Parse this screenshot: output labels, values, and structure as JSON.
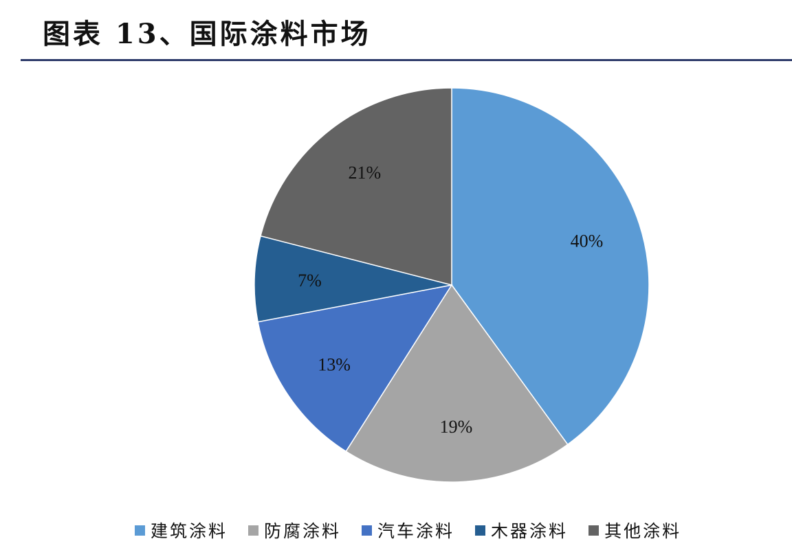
{
  "header": {
    "title": "图表 13、国际涂料市场"
  },
  "chart_data": {
    "type": "pie",
    "title": "",
    "slices": [
      {
        "name": "建筑涂料",
        "value": 40,
        "label": "40%",
        "color": "#5b9bd5"
      },
      {
        "name": "防腐涂料",
        "value": 19,
        "label": "19%",
        "color": "#a5a5a5"
      },
      {
        "name": "汽车涂料",
        "value": 13,
        "label": "13%",
        "color": "#4472c4"
      },
      {
        "name": "木器涂料",
        "value": 7,
        "label": "7%",
        "color": "#255e91"
      },
      {
        "name": "其他涂料",
        "value": 21,
        "label": "21%",
        "color": "#636363"
      }
    ],
    "start_angle": "12 o'clock",
    "direction": "clockwise",
    "legend_position": "bottom"
  }
}
